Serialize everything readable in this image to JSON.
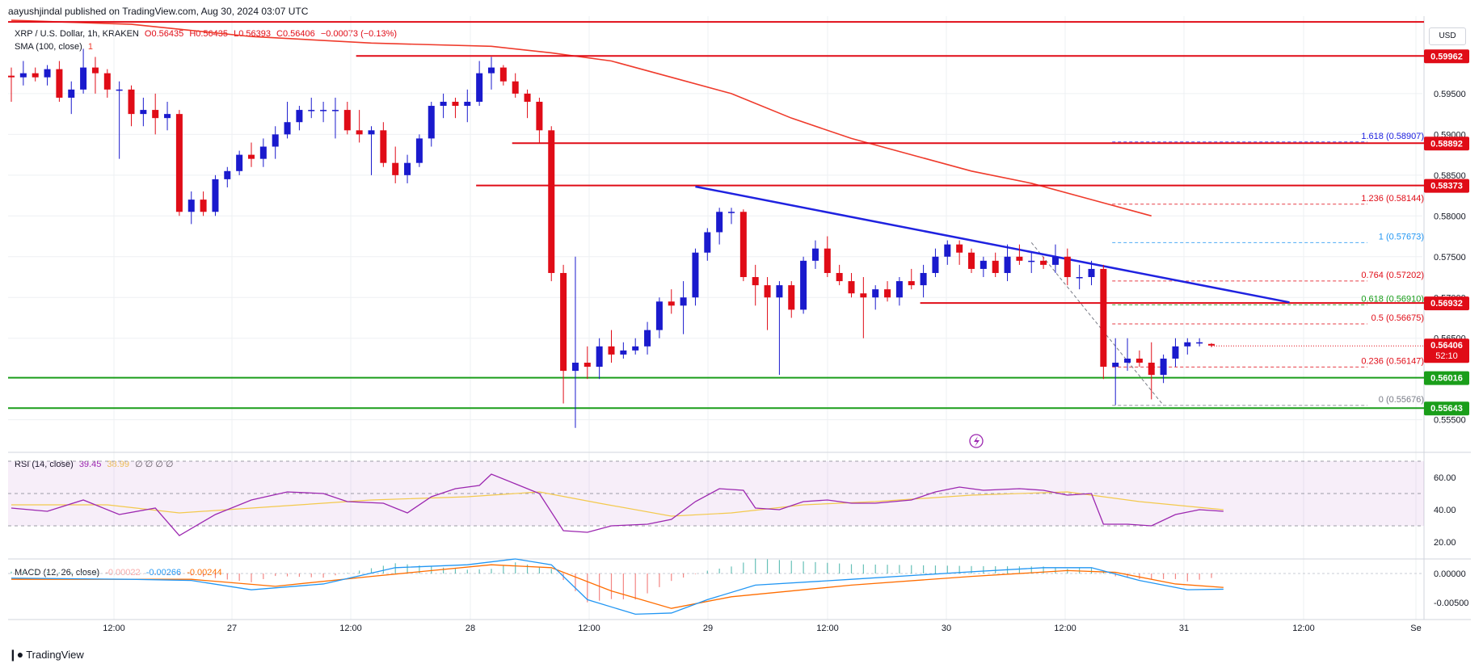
{
  "header": {
    "published": "aayushjindal published on TradingView.com, Aug 30, 2024 03:07 UTC"
  },
  "legend": {
    "symbol": "XRP / U.S. Dollar, 1h, KRAKEN",
    "o": "O0.56435",
    "h": "H0.56435",
    "l": "L0.56393",
    "c": "C0.56406",
    "chg": "−0.00073 (−0.13%)",
    "sma": "SMA (100, close)",
    "sma_len": "1",
    "rsi": "RSI (14, close)",
    "rsi_val": "39.45",
    "rsi_ma": "38.99",
    "rsi_extra": "∅ ∅ ∅ ∅",
    "macd": "MACD (12, 26, close)",
    "macd_hist": "-0.00022",
    "macd_line": "-0.00266",
    "macd_signal": "-0.00244"
  },
  "currency": "USD",
  "footer": {
    "brand": "TradingView"
  },
  "colors": {
    "bull": "#1a1acd",
    "bear": "#e00c17",
    "resistance": "#e00c17",
    "support": "#1a9e1a",
    "trendline": "#1f22e0",
    "sma": "#ef3b2c",
    "rsi": "#9c27b0",
    "rsi_ma": "#f3c94d",
    "macd": "#2196f3",
    "signal": "#ff6d00",
    "grid": "#eef0f3"
  },
  "chart_data": {
    "type": "candlestick",
    "title": "XRP / U.S. Dollar, 1h, KRAKEN",
    "ylim": [
      0.5515,
      0.6045
    ],
    "x_ticks": [
      "12:00",
      "27",
      "12:00",
      "28",
      "12:00",
      "29",
      "12:00",
      "30",
      "12:00",
      "31",
      "12:00",
      "Se"
    ],
    "y_ticks": [
      "0.55500",
      "0.56500",
      "0.57000",
      "0.57500",
      "0.58000",
      "0.58500",
      "0.59000",
      "0.59500"
    ],
    "candles": [
      {
        "o": 0.5972,
        "h": 0.5982,
        "l": 0.594,
        "c": 0.597
      },
      {
        "o": 0.597,
        "h": 0.599,
        "l": 0.596,
        "c": 0.5975
      },
      {
        "o": 0.5975,
        "h": 0.5982,
        "l": 0.5965,
        "c": 0.597
      },
      {
        "o": 0.597,
        "h": 0.5985,
        "l": 0.596,
        "c": 0.598
      },
      {
        "o": 0.598,
        "h": 0.599,
        "l": 0.594,
        "c": 0.5945
      },
      {
        "o": 0.5945,
        "h": 0.5965,
        "l": 0.5925,
        "c": 0.5955
      },
      {
        "o": 0.5955,
        "h": 0.6005,
        "l": 0.595,
        "c": 0.5982
      },
      {
        "o": 0.5982,
        "h": 0.5995,
        "l": 0.595,
        "c": 0.5975
      },
      {
        "o": 0.5975,
        "h": 0.598,
        "l": 0.5945,
        "c": 0.5955
      },
      {
        "o": 0.5955,
        "h": 0.5965,
        "l": 0.587,
        "c": 0.5955
      },
      {
        "o": 0.5955,
        "h": 0.596,
        "l": 0.591,
        "c": 0.5925
      },
      {
        "o": 0.5925,
        "h": 0.5945,
        "l": 0.591,
        "c": 0.593
      },
      {
        "o": 0.593,
        "h": 0.595,
        "l": 0.59,
        "c": 0.592
      },
      {
        "o": 0.592,
        "h": 0.594,
        "l": 0.5905,
        "c": 0.5925
      },
      {
        "o": 0.5925,
        "h": 0.593,
        "l": 0.58,
        "c": 0.5805
      },
      {
        "o": 0.5805,
        "h": 0.583,
        "l": 0.579,
        "c": 0.582
      },
      {
        "o": 0.582,
        "h": 0.583,
        "l": 0.58,
        "c": 0.5805
      },
      {
        "o": 0.5805,
        "h": 0.585,
        "l": 0.58,
        "c": 0.5845
      },
      {
        "o": 0.5845,
        "h": 0.586,
        "l": 0.5835,
        "c": 0.5855
      },
      {
        "o": 0.5855,
        "h": 0.588,
        "l": 0.585,
        "c": 0.5875
      },
      {
        "o": 0.5875,
        "h": 0.589,
        "l": 0.586,
        "c": 0.587
      },
      {
        "o": 0.587,
        "h": 0.5895,
        "l": 0.586,
        "c": 0.5885
      },
      {
        "o": 0.5885,
        "h": 0.591,
        "l": 0.587,
        "c": 0.59
      },
      {
        "o": 0.59,
        "h": 0.594,
        "l": 0.5895,
        "c": 0.5915
      },
      {
        "o": 0.5915,
        "h": 0.5935,
        "l": 0.5905,
        "c": 0.593
      },
      {
        "o": 0.593,
        "h": 0.5945,
        "l": 0.592,
        "c": 0.593
      },
      {
        "o": 0.593,
        "h": 0.594,
        "l": 0.5915,
        "c": 0.593
      },
      {
        "o": 0.593,
        "h": 0.5945,
        "l": 0.5895,
        "c": 0.593
      },
      {
        "o": 0.593,
        "h": 0.594,
        "l": 0.59,
        "c": 0.5905
      },
      {
        "o": 0.5905,
        "h": 0.593,
        "l": 0.589,
        "c": 0.59
      },
      {
        "o": 0.59,
        "h": 0.591,
        "l": 0.585,
        "c": 0.5905
      },
      {
        "o": 0.5905,
        "h": 0.5915,
        "l": 0.586,
        "c": 0.5865
      },
      {
        "o": 0.5865,
        "h": 0.5885,
        "l": 0.584,
        "c": 0.585
      },
      {
        "o": 0.585,
        "h": 0.5875,
        "l": 0.584,
        "c": 0.5865
      },
      {
        "o": 0.5865,
        "h": 0.59,
        "l": 0.586,
        "c": 0.5895
      },
      {
        "o": 0.5895,
        "h": 0.594,
        "l": 0.5885,
        "c": 0.5935
      },
      {
        "o": 0.5935,
        "h": 0.595,
        "l": 0.592,
        "c": 0.594
      },
      {
        "o": 0.594,
        "h": 0.5945,
        "l": 0.592,
        "c": 0.5935
      },
      {
        "o": 0.5935,
        "h": 0.5955,
        "l": 0.5915,
        "c": 0.594
      },
      {
        "o": 0.594,
        "h": 0.599,
        "l": 0.5935,
        "c": 0.5975
      },
      {
        "o": 0.5975,
        "h": 0.5995,
        "l": 0.5955,
        "c": 0.5982
      },
      {
        "o": 0.5982,
        "h": 0.5985,
        "l": 0.596,
        "c": 0.5965
      },
      {
        "o": 0.5965,
        "h": 0.5975,
        "l": 0.5945,
        "c": 0.595
      },
      {
        "o": 0.595,
        "h": 0.5955,
        "l": 0.592,
        "c": 0.594
      },
      {
        "o": 0.594,
        "h": 0.5945,
        "l": 0.589,
        "c": 0.5905
      },
      {
        "o": 0.5905,
        "h": 0.591,
        "l": 0.572,
        "c": 0.573
      },
      {
        "o": 0.573,
        "h": 0.574,
        "l": 0.557,
        "c": 0.561
      },
      {
        "o": 0.561,
        "h": 0.575,
        "l": 0.554,
        "c": 0.562
      },
      {
        "o": 0.562,
        "h": 0.564,
        "l": 0.56,
        "c": 0.5615
      },
      {
        "o": 0.5615,
        "h": 0.565,
        "l": 0.56,
        "c": 0.564
      },
      {
        "o": 0.564,
        "h": 0.566,
        "l": 0.562,
        "c": 0.563
      },
      {
        "o": 0.563,
        "h": 0.5645,
        "l": 0.5625,
        "c": 0.5635
      },
      {
        "o": 0.5635,
        "h": 0.565,
        "l": 0.563,
        "c": 0.564
      },
      {
        "o": 0.564,
        "h": 0.567,
        "l": 0.563,
        "c": 0.566
      },
      {
        "o": 0.566,
        "h": 0.57,
        "l": 0.565,
        "c": 0.5695
      },
      {
        "o": 0.5695,
        "h": 0.571,
        "l": 0.568,
        "c": 0.569
      },
      {
        "o": 0.569,
        "h": 0.572,
        "l": 0.5655,
        "c": 0.57
      },
      {
        "o": 0.57,
        "h": 0.576,
        "l": 0.569,
        "c": 0.5755
      },
      {
        "o": 0.5755,
        "h": 0.5785,
        "l": 0.5745,
        "c": 0.578
      },
      {
        "o": 0.578,
        "h": 0.581,
        "l": 0.5765,
        "c": 0.5805
      },
      {
        "o": 0.5805,
        "h": 0.581,
        "l": 0.579,
        "c": 0.5805
      },
      {
        "o": 0.5805,
        "h": 0.5808,
        "l": 0.572,
        "c": 0.5725
      },
      {
        "o": 0.5725,
        "h": 0.574,
        "l": 0.569,
        "c": 0.5715
      },
      {
        "o": 0.5715,
        "h": 0.5725,
        "l": 0.566,
        "c": 0.57
      },
      {
        "o": 0.57,
        "h": 0.572,
        "l": 0.5605,
        "c": 0.5715
      },
      {
        "o": 0.5715,
        "h": 0.572,
        "l": 0.5675,
        "c": 0.5685
      },
      {
        "o": 0.5685,
        "h": 0.575,
        "l": 0.568,
        "c": 0.5745
      },
      {
        "o": 0.5745,
        "h": 0.577,
        "l": 0.5735,
        "c": 0.576
      },
      {
        "o": 0.576,
        "h": 0.5775,
        "l": 0.5725,
        "c": 0.573
      },
      {
        "o": 0.573,
        "h": 0.574,
        "l": 0.5715,
        "c": 0.572
      },
      {
        "o": 0.572,
        "h": 0.573,
        "l": 0.57,
        "c": 0.5705
      },
      {
        "o": 0.5705,
        "h": 0.5725,
        "l": 0.565,
        "c": 0.57
      },
      {
        "o": 0.57,
        "h": 0.5715,
        "l": 0.5685,
        "c": 0.571
      },
      {
        "o": 0.571,
        "h": 0.572,
        "l": 0.5695,
        "c": 0.57
      },
      {
        "o": 0.57,
        "h": 0.5725,
        "l": 0.569,
        "c": 0.572
      },
      {
        "o": 0.572,
        "h": 0.5735,
        "l": 0.571,
        "c": 0.5715
      },
      {
        "o": 0.5715,
        "h": 0.574,
        "l": 0.57,
        "c": 0.573
      },
      {
        "o": 0.573,
        "h": 0.576,
        "l": 0.5725,
        "c": 0.575
      },
      {
        "o": 0.575,
        "h": 0.577,
        "l": 0.574,
        "c": 0.5765
      },
      {
        "o": 0.5765,
        "h": 0.577,
        "l": 0.574,
        "c": 0.5755
      },
      {
        "o": 0.5755,
        "h": 0.576,
        "l": 0.573,
        "c": 0.5735
      },
      {
        "o": 0.5735,
        "h": 0.575,
        "l": 0.5725,
        "c": 0.5745
      },
      {
        "o": 0.5745,
        "h": 0.5755,
        "l": 0.5725,
        "c": 0.573
      },
      {
        "o": 0.573,
        "h": 0.5765,
        "l": 0.572,
        "c": 0.575
      },
      {
        "o": 0.575,
        "h": 0.5765,
        "l": 0.574,
        "c": 0.5745
      },
      {
        "o": 0.5745,
        "h": 0.5755,
        "l": 0.573,
        "c": 0.5745
      },
      {
        "o": 0.5745,
        "h": 0.575,
        "l": 0.5735,
        "c": 0.574
      },
      {
        "o": 0.574,
        "h": 0.5765,
        "l": 0.573,
        "c": 0.575
      },
      {
        "o": 0.575,
        "h": 0.576,
        "l": 0.5715,
        "c": 0.5725
      },
      {
        "o": 0.5725,
        "h": 0.574,
        "l": 0.571,
        "c": 0.5725
      },
      {
        "o": 0.5725,
        "h": 0.5745,
        "l": 0.5715,
        "c": 0.5735
      },
      {
        "o": 0.5735,
        "h": 0.574,
        "l": 0.56,
        "c": 0.5615
      },
      {
        "o": 0.5615,
        "h": 0.565,
        "l": 0.5568,
        "c": 0.562
      },
      {
        "o": 0.562,
        "h": 0.565,
        "l": 0.561,
        "c": 0.5625
      },
      {
        "o": 0.5625,
        "h": 0.5635,
        "l": 0.5615,
        "c": 0.562
      },
      {
        "o": 0.562,
        "h": 0.5645,
        "l": 0.5575,
        "c": 0.5605
      },
      {
        "o": 0.5605,
        "h": 0.563,
        "l": 0.5595,
        "c": 0.5625
      },
      {
        "o": 0.5625,
        "h": 0.565,
        "l": 0.5615,
        "c": 0.564
      },
      {
        "o": 0.564,
        "h": 0.565,
        "l": 0.563,
        "c": 0.5645
      },
      {
        "o": 0.5645,
        "h": 0.565,
        "l": 0.564,
        "c": 0.5645
      },
      {
        "o": 0.5643,
        "h": 0.5644,
        "l": 0.5639,
        "c": 0.5641
      }
    ],
    "sma": [
      {
        "i": 0,
        "v": 0.604
      },
      {
        "i": 10,
        "v": 0.6035
      },
      {
        "i": 20,
        "v": 0.602
      },
      {
        "i": 30,
        "v": 0.6012
      },
      {
        "i": 40,
        "v": 0.6008
      },
      {
        "i": 45,
        "v": 0.6
      },
      {
        "i": 50,
        "v": 0.599
      },
      {
        "i": 55,
        "v": 0.597
      },
      {
        "i": 60,
        "v": 0.595
      },
      {
        "i": 65,
        "v": 0.592
      },
      {
        "i": 70,
        "v": 0.5895
      },
      {
        "i": 75,
        "v": 0.5875
      },
      {
        "i": 80,
        "v": 0.5855
      },
      {
        "i": 85,
        "v": 0.584
      },
      {
        "i": 90,
        "v": 0.582
      },
      {
        "i": 95,
        "v": 0.58
      }
    ],
    "levels": [
      {
        "kind": "resistance",
        "value": 0.6038,
        "from": 0,
        "to": -1
      },
      {
        "kind": "resistance",
        "value": 0.59962,
        "from": 29,
        "to": -1,
        "label": "0.59962"
      },
      {
        "kind": "resistance",
        "value": 0.58892,
        "from": 42,
        "to": -1,
        "label": "0.58892"
      },
      {
        "kind": "resistance",
        "value": 0.58373,
        "from": 39,
        "to": -1,
        "label": "0.58373"
      },
      {
        "kind": "resistance",
        "value": 0.56932,
        "from": 76,
        "to": -1,
        "label": "0.56932"
      },
      {
        "kind": "support",
        "value": 0.56016,
        "from": 0,
        "to": -1,
        "label": "0.56016"
      },
      {
        "kind": "support",
        "value": 0.55643,
        "from": 0,
        "to": -1,
        "label": "0.55643"
      }
    ],
    "current_price": {
      "label": "0.56406",
      "countdown": "52:10",
      "value": 0.56406
    },
    "trendline": {
      "x1": 57,
      "y1": 0.5836,
      "x2": 106.5,
      "y2": 0.5694
    },
    "fib": [
      {
        "ratio": "1.618",
        "value": 0.58907,
        "label": "1.618 (0.58907)"
      },
      {
        "ratio": "1.236",
        "value": 0.58144,
        "label": "1.236 (0.58144)"
      },
      {
        "ratio": "1",
        "value": 0.57673,
        "label": "1 (0.57673)"
      },
      {
        "ratio": "0.764",
        "value": 0.57202,
        "label": "0.764 (0.57202)"
      },
      {
        "ratio": "0.618",
        "value": 0.5691,
        "label": "0.618 (0.56910)"
      },
      {
        "ratio": "0.5",
        "value": 0.56675,
        "label": "0.5 (0.56675)"
      },
      {
        "ratio": "0.236",
        "value": 0.56147,
        "label": "0.236 (0.56147)"
      },
      {
        "ratio": "0",
        "value": 0.55676,
        "label": "0 (0.55676)"
      }
    ],
    "rsi": [
      {
        "i": 0,
        "v": 41
      },
      {
        "i": 3,
        "v": 39
      },
      {
        "i": 6,
        "v": 46
      },
      {
        "i": 9,
        "v": 37
      },
      {
        "i": 12,
        "v": 41
      },
      {
        "i": 14,
        "v": 24
      },
      {
        "i": 17,
        "v": 37
      },
      {
        "i": 20,
        "v": 46
      },
      {
        "i": 23,
        "v": 51
      },
      {
        "i": 26,
        "v": 50
      },
      {
        "i": 28,
        "v": 45
      },
      {
        "i": 31,
        "v": 44
      },
      {
        "i": 33,
        "v": 38
      },
      {
        "i": 35,
        "v": 48
      },
      {
        "i": 37,
        "v": 53
      },
      {
        "i": 39,
        "v": 55
      },
      {
        "i": 40,
        "v": 62
      },
      {
        "i": 42,
        "v": 56
      },
      {
        "i": 44,
        "v": 50
      },
      {
        "i": 46,
        "v": 27
      },
      {
        "i": 48,
        "v": 26
      },
      {
        "i": 50,
        "v": 30
      },
      {
        "i": 53,
        "v": 31
      },
      {
        "i": 55,
        "v": 34
      },
      {
        "i": 57,
        "v": 45
      },
      {
        "i": 59,
        "v": 53
      },
      {
        "i": 61,
        "v": 52
      },
      {
        "i": 62,
        "v": 41
      },
      {
        "i": 64,
        "v": 40
      },
      {
        "i": 66,
        "v": 45
      },
      {
        "i": 68,
        "v": 46
      },
      {
        "i": 70,
        "v": 44
      },
      {
        "i": 72,
        "v": 44
      },
      {
        "i": 75,
        "v": 46
      },
      {
        "i": 77,
        "v": 51
      },
      {
        "i": 79,
        "v": 54
      },
      {
        "i": 81,
        "v": 52
      },
      {
        "i": 84,
        "v": 53
      },
      {
        "i": 86,
        "v": 52
      },
      {
        "i": 88,
        "v": 49
      },
      {
        "i": 90,
        "v": 50
      },
      {
        "i": 91,
        "v": 31
      },
      {
        "i": 93,
        "v": 31
      },
      {
        "i": 95,
        "v": 30
      },
      {
        "i": 97,
        "v": 37
      },
      {
        "i": 99,
        "v": 40
      },
      {
        "i": 101,
        "v": 39
      }
    ],
    "rsi_ma": [
      {
        "i": 0,
        "v": 43
      },
      {
        "i": 8,
        "v": 43
      },
      {
        "i": 14,
        "v": 38
      },
      {
        "i": 22,
        "v": 42
      },
      {
        "i": 30,
        "v": 46
      },
      {
        "i": 38,
        "v": 48
      },
      {
        "i": 44,
        "v": 51
      },
      {
        "i": 49,
        "v": 44
      },
      {
        "i": 55,
        "v": 36
      },
      {
        "i": 60,
        "v": 38
      },
      {
        "i": 66,
        "v": 43
      },
      {
        "i": 72,
        "v": 45
      },
      {
        "i": 80,
        "v": 49
      },
      {
        "i": 88,
        "v": 51
      },
      {
        "i": 94,
        "v": 45
      },
      {
        "i": 101,
        "v": 40
      }
    ],
    "rsi_levels": [
      "60.00",
      "40.00",
      "20.00"
    ],
    "macd_line": [
      {
        "i": 0,
        "v": -0.0008
      },
      {
        "i": 10,
        "v": -0.001
      },
      {
        "i": 15,
        "v": -0.0012
      },
      {
        "i": 20,
        "v": -0.0028
      },
      {
        "i": 26,
        "v": -0.0018
      },
      {
        "i": 32,
        "v": 0.001
      },
      {
        "i": 38,
        "v": 0.0015
      },
      {
        "i": 42,
        "v": 0.0025
      },
      {
        "i": 45,
        "v": 0.0015
      },
      {
        "i": 48,
        "v": -0.0045
      },
      {
        "i": 52,
        "v": -0.007
      },
      {
        "i": 55,
        "v": -0.0068
      },
      {
        "i": 58,
        "v": -0.0045
      },
      {
        "i": 62,
        "v": -0.002
      },
      {
        "i": 70,
        "v": -0.001
      },
      {
        "i": 80,
        "v": 0.0003
      },
      {
        "i": 86,
        "v": 0.001
      },
      {
        "i": 90,
        "v": 0.001
      },
      {
        "i": 94,
        "v": -0.0012
      },
      {
        "i": 98,
        "v": -0.0028
      },
      {
        "i": 101,
        "v": -0.0027
      }
    ],
    "macd_signal": [
      {
        "i": 0,
        "v": -0.001
      },
      {
        "i": 15,
        "v": -0.001
      },
      {
        "i": 22,
        "v": -0.0022
      },
      {
        "i": 30,
        "v": -0.0005
      },
      {
        "i": 40,
        "v": 0.0015
      },
      {
        "i": 45,
        "v": 0.001
      },
      {
        "i": 50,
        "v": -0.003
      },
      {
        "i": 55,
        "v": -0.006
      },
      {
        "i": 60,
        "v": -0.004
      },
      {
        "i": 70,
        "v": -0.002
      },
      {
        "i": 80,
        "v": -0.0005
      },
      {
        "i": 88,
        "v": 0.0005
      },
      {
        "i": 92,
        "v": 0.0002
      },
      {
        "i": 97,
        "v": -0.0018
      },
      {
        "i": 101,
        "v": -0.0024
      }
    ],
    "macd_ticks": [
      "0.00000",
      "-0.00500"
    ]
  }
}
